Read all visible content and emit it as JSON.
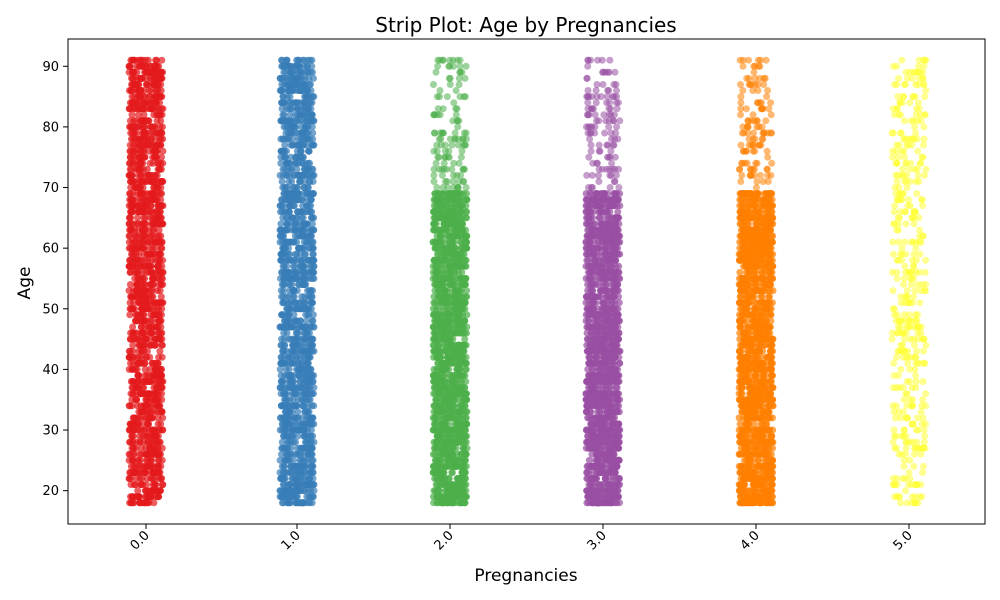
{
  "chart_data": {
    "type": "scatter",
    "subtype": "strip",
    "title": "Strip Plot: Age by Pregnancies",
    "xlabel": "Pregnancies",
    "ylabel": "Age",
    "categories": [
      "0.0",
      "1.0",
      "2.0",
      "3.0",
      "4.0",
      "5.0"
    ],
    "yticks": [
      "20",
      "30",
      "40",
      "50",
      "60",
      "70",
      "80",
      "90"
    ],
    "ylim": [
      14.5,
      94.5
    ],
    "age_range": [
      18,
      91
    ],
    "grid": false,
    "legend": "none",
    "series": [
      {
        "category": "0.0",
        "color": "#e41a1c",
        "dense_age_range": [
          18,
          91
        ],
        "sparse_age_range": null
      },
      {
        "category": "1.0",
        "color": "#377eb8",
        "dense_age_range": [
          18,
          91
        ],
        "sparse_age_range": null
      },
      {
        "category": "2.0",
        "color": "#4daf4a",
        "dense_age_range": [
          18,
          69
        ],
        "sparse_age_range": [
          70,
          91
        ]
      },
      {
        "category": "3.0",
        "color": "#984ea3",
        "dense_age_range": [
          18,
          69
        ],
        "sparse_age_range": [
          70,
          91
        ]
      },
      {
        "category": "4.0",
        "color": "#ff7f00",
        "dense_age_range": [
          18,
          69
        ],
        "sparse_age_range": [
          70,
          91
        ]
      },
      {
        "category": "5.0",
        "color": "#ffff33",
        "dense_age_range": null,
        "sparse_age_range": [
          18,
          91
        ]
      }
    ]
  }
}
